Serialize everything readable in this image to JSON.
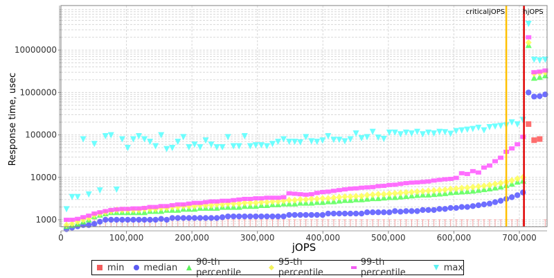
{
  "chart_data": {
    "type": "scatter",
    "title": "",
    "xlabel": "jOPS",
    "ylabel": "Response time, usec",
    "xlim": [
      0,
      740000
    ],
    "ylim": [
      700,
      80000000
    ],
    "yscale": "log",
    "grid": true,
    "legend_position": "bottom",
    "x_ticks": [
      "0",
      "100,000",
      "200,000",
      "300,000",
      "400,000",
      "500,000",
      "600,000",
      "700,000"
    ],
    "x_tick_values": [
      0,
      100000,
      200000,
      300000,
      400000,
      500000,
      600000,
      700000
    ],
    "y_ticks": [
      "1000",
      "10000",
      "100000",
      "1000000",
      "10000000"
    ],
    "y_tick_values": [
      1000,
      10000,
      100000,
      1000000,
      10000000
    ],
    "annotations": [
      {
        "label": "criticaljOPS",
        "x": 680000,
        "color": "#ffc000"
      },
      {
        "label": "hjOPS",
        "x": 707000,
        "color": "#e00000"
      }
    ],
    "x": [
      8500,
      17000,
      25500,
      34000,
      42500,
      51000,
      59500,
      68000,
      76500,
      85000,
      93500,
      102000,
      110500,
      119000,
      127500,
      136000,
      144500,
      153000,
      161500,
      170000,
      178500,
      187000,
      195500,
      204000,
      212500,
      221000,
      229500,
      238000,
      246500,
      255000,
      263500,
      272000,
      280500,
      289000,
      297500,
      306000,
      314500,
      323000,
      331500,
      340000,
      348500,
      357000,
      365500,
      374000,
      382500,
      391000,
      399500,
      408000,
      416500,
      425000,
      433500,
      442000,
      450500,
      459000,
      467500,
      476000,
      484500,
      493000,
      501500,
      510000,
      518500,
      527000,
      535500,
      544000,
      552500,
      561000,
      569500,
      578000,
      586500,
      595000,
      603500,
      612000,
      620500,
      629000,
      637500,
      646000,
      654500,
      663000,
      671500,
      680000,
      688500,
      697000,
      705500,
      714000,
      722500,
      731000,
      739500
    ],
    "series": [
      {
        "name": "min",
        "color": "#ff5555",
        "marker": "square",
        "values": [
          1000,
          1000,
          1000,
          1000,
          1000,
          1000,
          1000,
          1000,
          1000,
          1000,
          1000,
          1000,
          1000,
          1000,
          1000,
          1000,
          1000,
          1000,
          1000,
          1000,
          1000,
          1000,
          1000,
          1000,
          1000,
          1000,
          1000,
          1000,
          1000,
          1000,
          1000,
          1000,
          1000,
          1000,
          1000,
          1000,
          1000,
          1000,
          1000,
          1000,
          1000,
          1000,
          1000,
          1000,
          1000,
          1000,
          1000,
          1000,
          1000,
          1000,
          1000,
          1000,
          1000,
          1000,
          1000,
          1000,
          1000,
          1000,
          1000,
          1000,
          1000,
          1000,
          1000,
          1000,
          1000,
          1000,
          1000,
          1000,
          1000,
          1000,
          1000,
          1000,
          1000,
          1000,
          1000,
          1000,
          1000,
          1000,
          1000,
          1000,
          1000,
          1000,
          1000,
          180000,
          75000,
          80000,
          1000
        ]
      },
      {
        "name": "median",
        "color": "#5555ff",
        "marker": "circle",
        "values": [
          600,
          650,
          700,
          750,
          750,
          800,
          900,
          1000,
          1000,
          1000,
          1000,
          1000,
          1000,
          1000,
          1000,
          1000,
          1000,
          1050,
          1000,
          1100,
          1100,
          1100,
          1100,
          1100,
          1100,
          1100,
          1100,
          1100,
          1150,
          1200,
          1200,
          1200,
          1200,
          1200,
          1200,
          1200,
          1200,
          1200,
          1200,
          1200,
          1300,
          1300,
          1300,
          1300,
          1300,
          1300,
          1300,
          1400,
          1400,
          1400,
          1400,
          1400,
          1400,
          1400,
          1500,
          1500,
          1500,
          1500,
          1500,
          1600,
          1550,
          1600,
          1600,
          1600,
          1700,
          1700,
          1700,
          1800,
          1800,
          1900,
          1900,
          2000,
          2000,
          2100,
          2200,
          2300,
          2400,
          2600,
          2800,
          3100,
          3400,
          3800,
          4400,
          1000000,
          800000,
          820000,
          900000
        ]
      },
      {
        "name": "90-th percentile",
        "color": "#55ff55",
        "marker": "triangle-up",
        "values": [
          700,
          750,
          800,
          900,
          1000,
          1200,
          1300,
          1400,
          1500,
          1500,
          1500,
          1500,
          1500,
          1500,
          1500,
          1600,
          1600,
          1600,
          1700,
          1700,
          1700,
          1800,
          1800,
          1800,
          1900,
          1900,
          1900,
          1900,
          2000,
          2000,
          2000,
          2000,
          2100,
          2100,
          2100,
          2200,
          2200,
          2300,
          2300,
          2400,
          2400,
          2400,
          2500,
          2500,
          2500,
          2600,
          2600,
          2700,
          2700,
          2800,
          2900,
          2900,
          3000,
          3000,
          3100,
          3200,
          3200,
          3300,
          3400,
          3400,
          3500,
          3600,
          3700,
          3800,
          3900,
          3900,
          4000,
          4100,
          4200,
          4400,
          4500,
          4600,
          4700,
          4800,
          5000,
          5200,
          5400,
          5700,
          6000,
          6500,
          7000,
          7800,
          8300,
          13000000,
          2200000,
          2300000,
          2500000
        ]
      },
      {
        "name": "95-th percentile",
        "color": "#ffff55",
        "marker": "diamond",
        "values": [
          750,
          800,
          900,
          1000,
          1100,
          1300,
          1400,
          1500,
          1600,
          1700,
          1700,
          1700,
          1700,
          1700,
          1800,
          1800,
          1800,
          1900,
          1900,
          2000,
          2000,
          2100,
          2100,
          2100,
          2200,
          2200,
          2200,
          2300,
          2300,
          2400,
          2400,
          2400,
          2500,
          2500,
          2500,
          2600,
          2600,
          2700,
          2700,
          2800,
          2900,
          2900,
          3000,
          3000,
          3100,
          3100,
          3200,
          3200,
          3300,
          3400,
          3500,
          3500,
          3600,
          3600,
          3800,
          3900,
          4000,
          4000,
          4100,
          4200,
          4300,
          4400,
          4500,
          4600,
          4700,
          4800,
          4900,
          5000,
          5100,
          5300,
          5400,
          5600,
          5700,
          5900,
          6100,
          6300,
          6600,
          7000,
          7300,
          7800,
          8400,
          9300,
          10000,
          15000000,
          2800000,
          2900000,
          3000000
        ]
      },
      {
        "name": "99-th percentile",
        "color": "#ff55ff",
        "marker": "square",
        "values": [
          1000,
          1000,
          1050,
          1150,
          1250,
          1400,
          1500,
          1600,
          1700,
          1750,
          1800,
          1800,
          1850,
          1850,
          1900,
          2000,
          2000,
          2100,
          2100,
          2200,
          2300,
          2300,
          2400,
          2500,
          2500,
          2600,
          2700,
          2700,
          2800,
          2800,
          2900,
          3000,
          3100,
          3100,
          3200,
          3200,
          3300,
          3300,
          3300,
          3400,
          4200,
          4100,
          4000,
          3900,
          4000,
          4300,
          4500,
          4600,
          4800,
          5000,
          5200,
          5400,
          5500,
          5700,
          5800,
          5900,
          6200,
          6300,
          6600,
          6700,
          7000,
          7300,
          7500,
          7600,
          7800,
          8000,
          8400,
          8700,
          9000,
          9200,
          9700,
          12500,
          12000,
          14000,
          13000,
          17000,
          19000,
          24000,
          29000,
          40000,
          48000,
          60000,
          90000,
          20000000,
          3000000,
          3100000,
          3300000
        ]
      },
      {
        "name": "max",
        "color": "#55ffff",
        "marker": "triangle-down",
        "values": [
          1800,
          3500,
          3500,
          80000,
          4000,
          62000,
          5000,
          95000,
          100000,
          5200,
          80000,
          50000,
          80000,
          95000,
          80000,
          70000,
          55000,
          100000,
          47000,
          50000,
          70000,
          90000,
          52000,
          60000,
          52000,
          75000,
          60000,
          52000,
          52000,
          90000,
          55000,
          55000,
          95000,
          55000,
          58000,
          58000,
          55000,
          62000,
          70000,
          80000,
          70000,
          70000,
          68000,
          90000,
          72000,
          70000,
          75000,
          95000,
          78000,
          78000,
          72000,
          80000,
          110000,
          85000,
          90000,
          120000,
          88000,
          82000,
          115000,
          115000,
          105000,
          115000,
          110000,
          120000,
          105000,
          115000,
          110000,
          120000,
          118000,
          108000,
          125000,
          130000,
          135000,
          140000,
          150000,
          130000,
          155000,
          160000,
          165000,
          170000,
          200000,
          180000,
          230000,
          42000000,
          6000000,
          5800000,
          6000000
        ]
      }
    ]
  },
  "legend": {
    "items": [
      {
        "label": "min",
        "color": "#f25c5c",
        "shape": "square"
      },
      {
        "label": "median",
        "color": "#5b5bf2",
        "shape": "circle"
      },
      {
        "label": "90-th percentile",
        "color": "#5cf25c",
        "shape": "triangle"
      },
      {
        "label": "95-th percentile",
        "color": "#f2f25c",
        "shape": "diamond"
      },
      {
        "label": "99-th percentile",
        "color": "#f25cf2",
        "shape": "bar"
      },
      {
        "label": "max",
        "color": "#5cf2f2",
        "shape": "triangle-down"
      }
    ]
  }
}
